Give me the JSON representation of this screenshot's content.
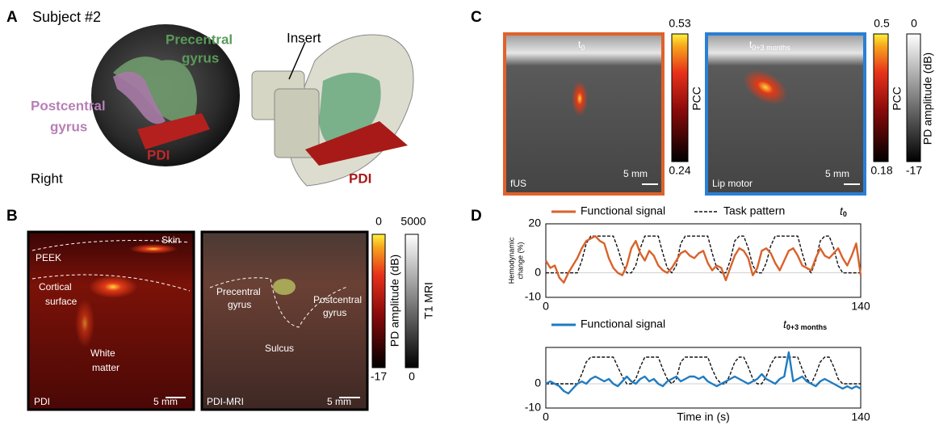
{
  "panel_a": {
    "letter": "A",
    "title": "Subject #2",
    "precentral": [
      "Precentral",
      "gyrus"
    ],
    "postcentral": [
      "Postcentral",
      "gyrus"
    ],
    "pdi_brain": "PDI",
    "right": "Right",
    "insert": "Insert",
    "pdi_device": "PDI"
  },
  "panel_b": {
    "letter": "B",
    "skin": "Skin",
    "peek": "PEEK",
    "cortical": [
      "Cortical",
      "surface"
    ],
    "white_matter": [
      "White",
      "matter"
    ],
    "pdi": "PDI",
    "scale_left": "5 mm",
    "precentral": [
      "Precentral",
      "gyrus"
    ],
    "sulcus": "Sulcus",
    "postcentral": [
      "Postcentral",
      "gyrus"
    ],
    "pdi_mri": "PDI-MRI",
    "scale_right": "5 mm",
    "colorbar_pd": {
      "max": 0,
      "min": -17,
      "label": "PD amplitude (dB)"
    },
    "colorbar_t1": {
      "max": 5000,
      "min": 0,
      "label": "T1 MRI"
    }
  },
  "panel_c": {
    "letter": "C",
    "time_left": {
      "text": "t",
      "sub": "0"
    },
    "time_right": {
      "text": "t",
      "sub": "0+3 months"
    },
    "fus": "fUS",
    "scale_left": "5 mm",
    "lip_motor": "Lip motor",
    "scale_right": "5 mm",
    "colorbar_pcc_left": {
      "max": 0.53,
      "min": 0.24,
      "label": "PCC"
    },
    "colorbar_pcc_right": {
      "max": 0.5,
      "min": 0.18,
      "label": "PCC"
    },
    "colorbar_pd": {
      "max": 0,
      "min": -17,
      "label": "PD amplitude (dB)"
    }
  },
  "panel_d": {
    "letter": "D"
  },
  "chart_data": [
    {
      "type": "line",
      "annotation": {
        "text": "t",
        "sub": "0"
      },
      "ylabel": [
        "Hemodynamic",
        "change (%)"
      ],
      "x": [
        0,
        2,
        4,
        6,
        8,
        10,
        12,
        14,
        16,
        18,
        20,
        22,
        24,
        26,
        28,
        30,
        32,
        34,
        36,
        38,
        40,
        42,
        44,
        46,
        48,
        50,
        52,
        54,
        56,
        58,
        60,
        62,
        64,
        66,
        68,
        70,
        72,
        74,
        76,
        78,
        80,
        82,
        84,
        86,
        88,
        90,
        92,
        94,
        96,
        98,
        100,
        102,
        104,
        106,
        108,
        110,
        112,
        114,
        116,
        118,
        120,
        122,
        124,
        126,
        128,
        130,
        132,
        134,
        136,
        138,
        140
      ],
      "series": [
        {
          "name": "Functional signal",
          "color": "#d9622b",
          "dashed": false,
          "values": [
            5,
            2,
            3,
            -2,
            -4,
            0,
            3,
            6,
            10,
            13,
            14,
            15,
            13,
            12,
            6,
            2,
            0,
            -1,
            3,
            10,
            13,
            8,
            5,
            9,
            7,
            3,
            1,
            0,
            2,
            5,
            8,
            9,
            7,
            6,
            8,
            9,
            4,
            1,
            3,
            2,
            -3,
            2,
            7,
            10,
            9,
            6,
            -1,
            2,
            9,
            10,
            8,
            4,
            1,
            5,
            9,
            10,
            7,
            3,
            2,
            1,
            6,
            10,
            7,
            6,
            8,
            10,
            6,
            3,
            7,
            12,
            -1
          ]
        },
        {
          "name": "Task pattern",
          "color": "#111111",
          "dashed": true,
          "values": [
            0,
            0,
            0,
            0,
            0,
            0,
            0,
            0,
            5,
            12,
            15,
            15,
            15,
            15,
            15,
            15,
            10,
            4,
            0,
            0,
            3,
            10,
            15,
            15,
            15,
            15,
            8,
            2,
            0,
            3,
            12,
            15,
            15,
            15,
            15,
            15,
            15,
            8,
            2,
            0,
            0,
            5,
            13,
            15,
            15,
            10,
            3,
            0,
            0,
            4,
            11,
            15,
            15,
            15,
            15,
            15,
            15,
            8,
            2,
            0,
            5,
            13,
            15,
            15,
            10,
            3,
            0,
            0,
            0,
            0,
            0
          ]
        }
      ],
      "xlim": [
        0,
        140
      ],
      "xticks": [
        0,
        140
      ],
      "ylim": [
        -10,
        20
      ],
      "yticks": [
        -10,
        0,
        20
      ],
      "grid": true
    },
    {
      "type": "line",
      "annotation": {
        "text": "t",
        "sub": "0+3 months"
      },
      "xlabel": "Time in (s)",
      "x": [
        0,
        2,
        4,
        6,
        8,
        10,
        12,
        14,
        16,
        18,
        20,
        22,
        24,
        26,
        28,
        30,
        32,
        34,
        36,
        38,
        40,
        42,
        44,
        46,
        48,
        50,
        52,
        54,
        56,
        58,
        60,
        62,
        64,
        66,
        68,
        70,
        72,
        74,
        76,
        78,
        80,
        82,
        84,
        86,
        88,
        90,
        92,
        94,
        96,
        98,
        100,
        102,
        104,
        106,
        108,
        110,
        112,
        114,
        116,
        118,
        120,
        122,
        124,
        126,
        128,
        130,
        132,
        134,
        136,
        138,
        140
      ],
      "series": [
        {
          "name": "Functional signal",
          "color": "#1f7bc0",
          "dashed": false,
          "values": [
            0,
            1,
            0,
            -1,
            -3,
            -4,
            -2,
            0,
            1,
            0,
            2,
            3,
            2,
            1,
            2,
            0,
            -1,
            1,
            3,
            1,
            0,
            2,
            3,
            1,
            2,
            0,
            -1,
            1,
            2,
            3,
            1,
            2,
            3,
            3,
            2,
            3,
            1,
            0,
            -1,
            0,
            1,
            2,
            3,
            2,
            1,
            0,
            1,
            2,
            4,
            2,
            1,
            0,
            2,
            3,
            13,
            1,
            2,
            3,
            1,
            0,
            -1,
            1,
            2,
            1,
            0,
            -1,
            -2,
            -1,
            -2,
            -1,
            -2
          ]
        },
        {
          "color": "#111111",
          "dashed": true,
          "values": [
            0,
            0,
            0,
            0,
            0,
            0,
            0,
            0,
            4,
            9,
            11,
            11,
            11,
            11,
            11,
            11,
            7,
            3,
            0,
            0,
            2,
            7,
            11,
            11,
            11,
            11,
            6,
            2,
            0,
            2,
            9,
            11,
            11,
            11,
            11,
            11,
            11,
            6,
            2,
            0,
            0,
            4,
            9,
            11,
            11,
            7,
            2,
            0,
            0,
            3,
            8,
            11,
            11,
            11,
            11,
            11,
            11,
            6,
            2,
            0,
            4,
            9,
            11,
            11,
            7,
            2,
            0,
            0,
            0,
            0,
            0
          ]
        }
      ],
      "xlim": [
        0,
        140
      ],
      "xticks": [
        0,
        140
      ],
      "ylim": [
        -10,
        15
      ],
      "yticks": [
        -10,
        0
      ],
      "grid": true
    }
  ]
}
